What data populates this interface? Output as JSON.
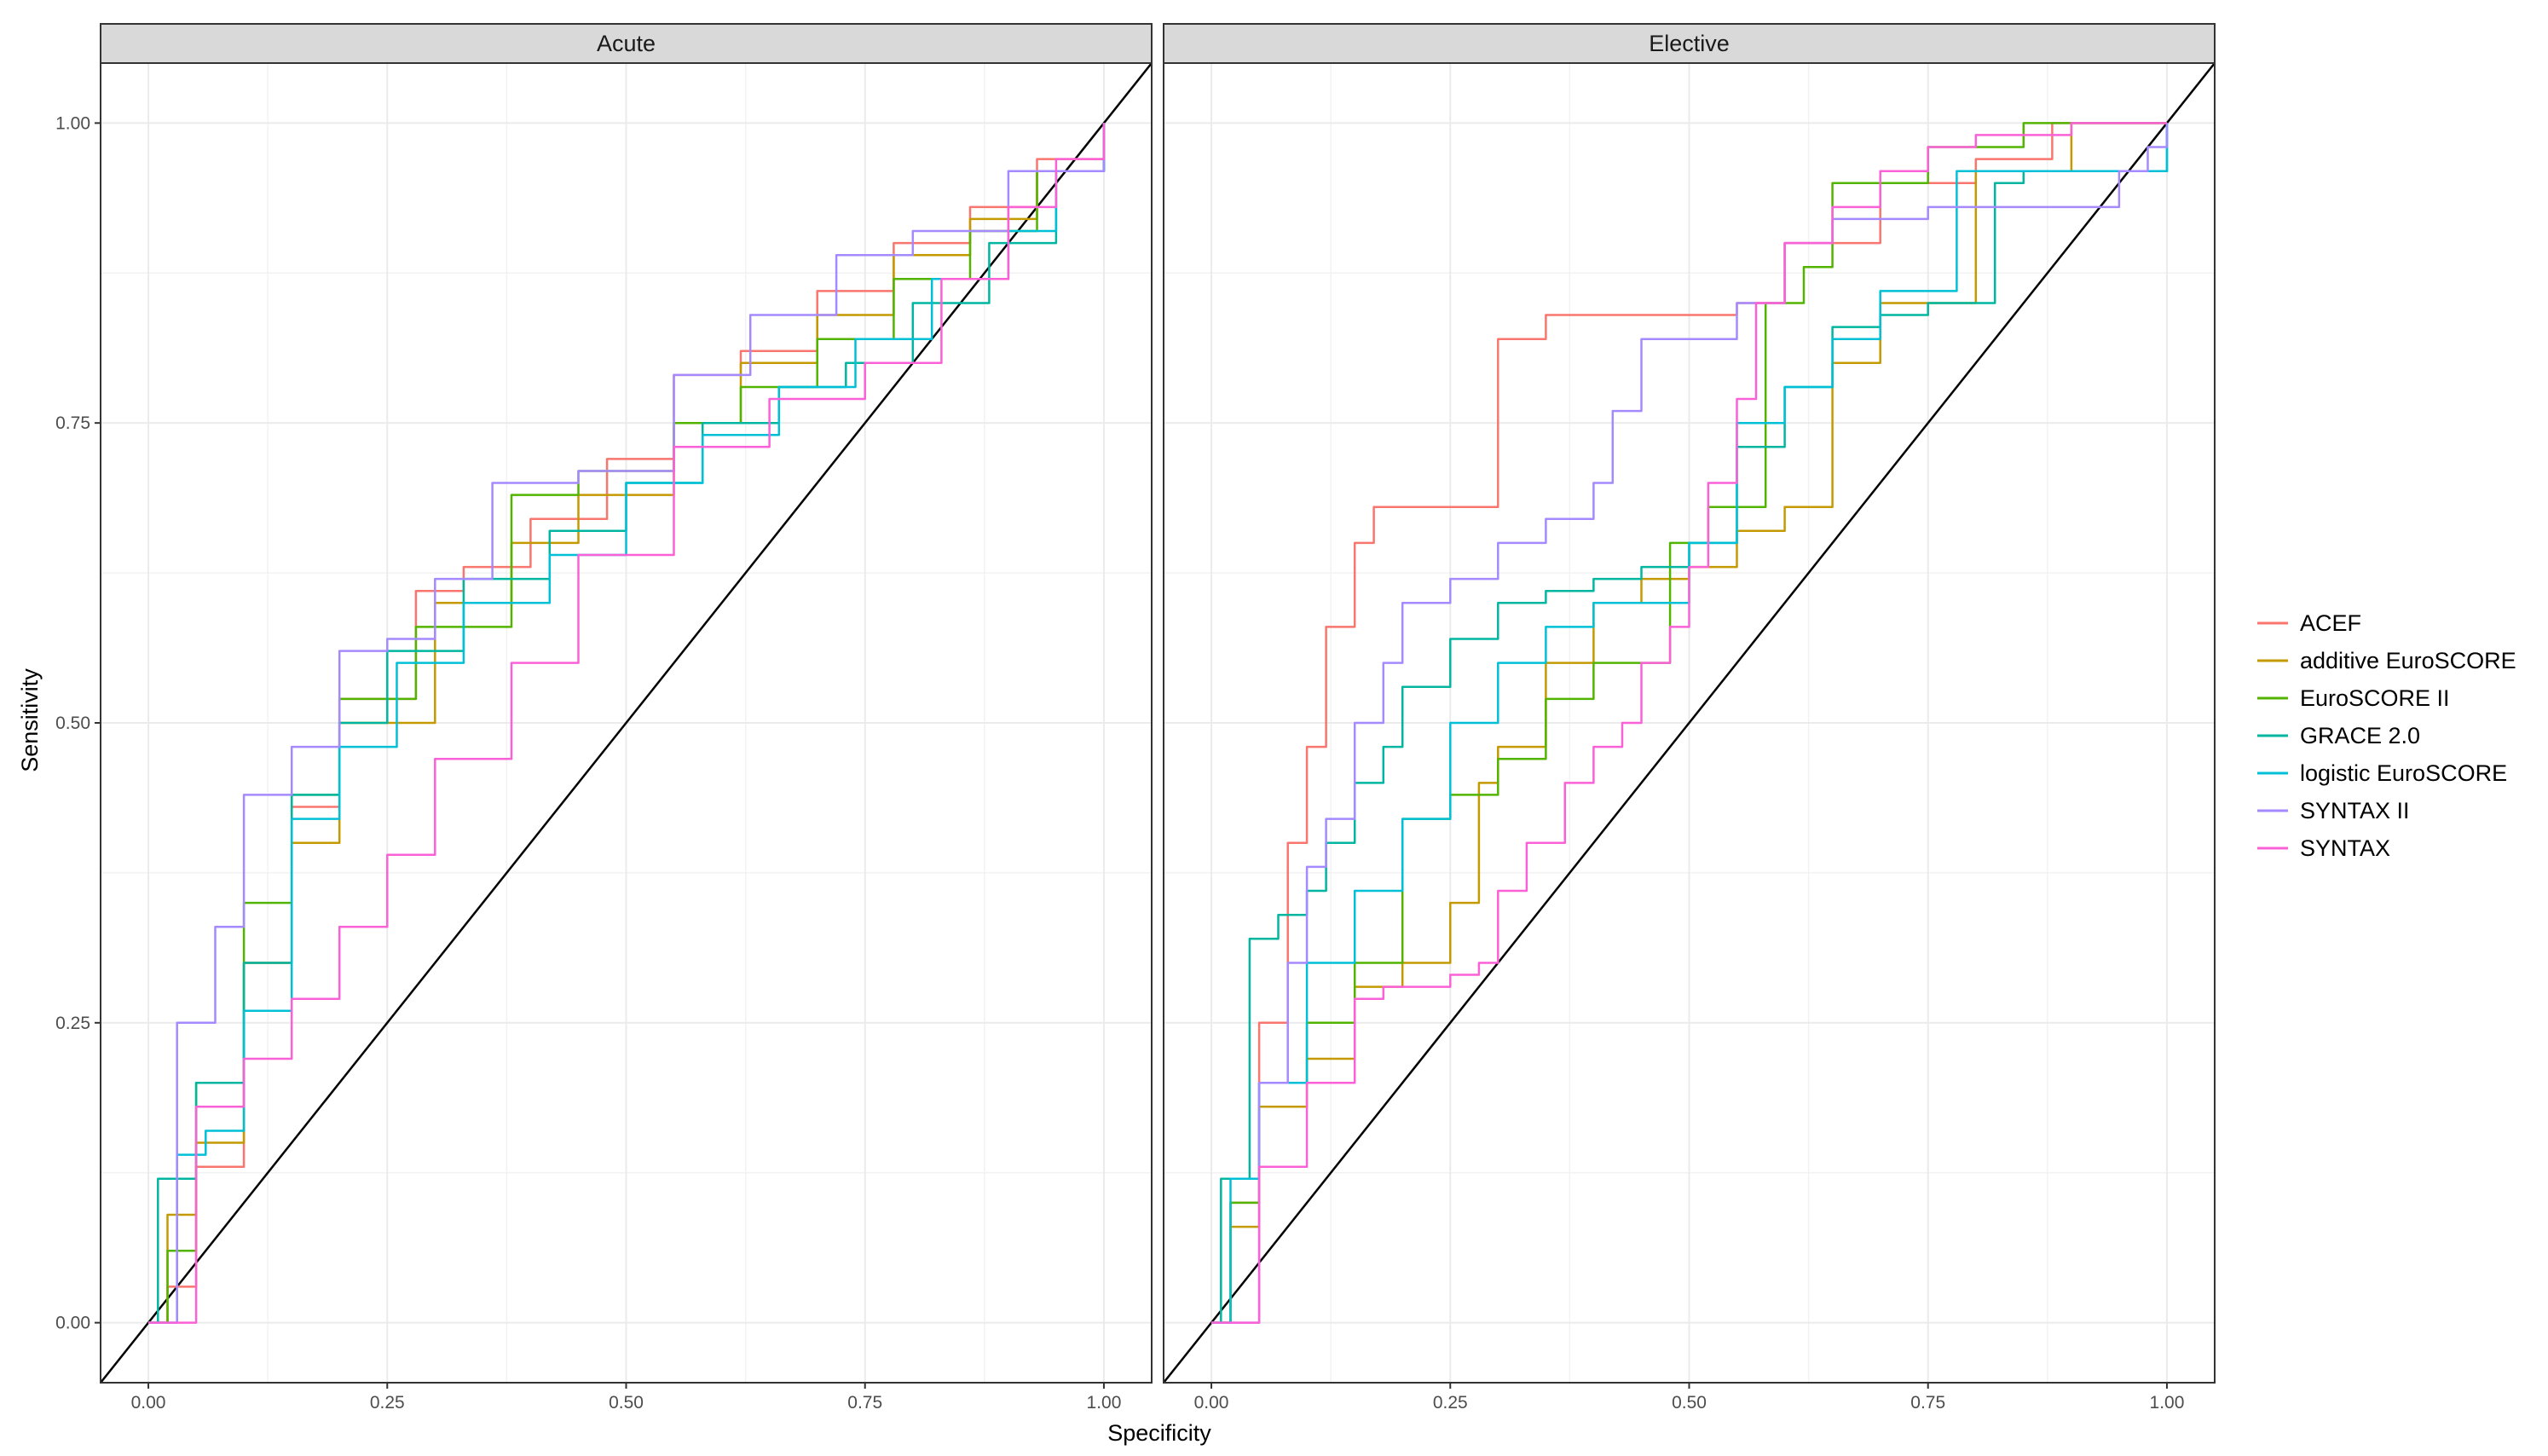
{
  "chart_data": {
    "type": "line",
    "xlabel": "Specificity",
    "ylabel": "Sensitivity",
    "xlim": [
      0,
      1
    ],
    "ylim": [
      0,
      1
    ],
    "x_ticks": [
      "0.00",
      "0.25",
      "0.50",
      "0.75",
      "1.00"
    ],
    "y_ticks": [
      "0.00",
      "0.25",
      "0.50",
      "0.75",
      "1.00"
    ],
    "grid": true,
    "legend_position": "right",
    "reference_line": "diagonal",
    "legend": [
      {
        "name": "ACEF",
        "color": "#F8766D"
      },
      {
        "name": "additive EuroSCORE",
        "color": "#C49A00"
      },
      {
        "name": "EuroSCORE II",
        "color": "#53B400"
      },
      {
        "name": "GRACE 2.0",
        "color": "#00B6A0"
      },
      {
        "name": "logistic EuroSCORE",
        "color": "#00C0D8"
      },
      {
        "name": "SYNTAX II",
        "color": "#A58AFF"
      },
      {
        "name": "SYNTAX",
        "color": "#FB61D7"
      }
    ],
    "panels": [
      {
        "title": "Acute",
        "series": [
          {
            "name": "ACEF",
            "x": [
              0,
              0.02,
              0.05,
              0.1,
              0.15,
              0.2,
              0.28,
              0.33,
              0.4,
              0.48,
              0.55,
              0.62,
              0.7,
              0.78,
              0.86,
              0.93,
              1.0
            ],
            "y": [
              0,
              0.03,
              0.13,
              0.3,
              0.43,
              0.52,
              0.61,
              0.63,
              0.67,
              0.72,
              0.79,
              0.81,
              0.86,
              0.9,
              0.93,
              0.97,
              1.0
            ]
          },
          {
            "name": "additive EuroSCORE",
            "x": [
              0,
              0.02,
              0.05,
              0.1,
              0.15,
              0.2,
              0.3,
              0.38,
              0.45,
              0.55,
              0.62,
              0.7,
              0.78,
              0.86,
              0.93,
              1.0
            ],
            "y": [
              0,
              0.09,
              0.15,
              0.3,
              0.4,
              0.5,
              0.6,
              0.65,
              0.69,
              0.75,
              0.8,
              0.84,
              0.89,
              0.92,
              0.96,
              1.0
            ]
          },
          {
            "name": "EuroSCORE II",
            "x": [
              0,
              0.02,
              0.05,
              0.1,
              0.15,
              0.2,
              0.28,
              0.38,
              0.45,
              0.55,
              0.62,
              0.7,
              0.78,
              0.86,
              0.93,
              1.0
            ],
            "y": [
              0,
              0.06,
              0.2,
              0.35,
              0.44,
              0.52,
              0.58,
              0.69,
              0.71,
              0.75,
              0.78,
              0.82,
              0.87,
              0.91,
              0.96,
              1.0
            ]
          },
          {
            "name": "GRACE 2.0",
            "x": [
              0,
              0.01,
              0.05,
              0.1,
              0.15,
              0.2,
              0.25,
              0.33,
              0.42,
              0.5,
              0.58,
              0.66,
              0.73,
              0.8,
              0.88,
              0.95,
              1.0
            ],
            "y": [
              0,
              0.12,
              0.2,
              0.3,
              0.44,
              0.5,
              0.56,
              0.62,
              0.66,
              0.7,
              0.75,
              0.78,
              0.8,
              0.85,
              0.9,
              0.96,
              1.0
            ]
          },
          {
            "name": "logistic EuroSCORE",
            "x": [
              0,
              0.03,
              0.06,
              0.1,
              0.15,
              0.2,
              0.26,
              0.33,
              0.42,
              0.5,
              0.58,
              0.66,
              0.74,
              0.82,
              0.9,
              0.95,
              1.0
            ],
            "y": [
              0,
              0.14,
              0.16,
              0.26,
              0.42,
              0.48,
              0.55,
              0.6,
              0.64,
              0.7,
              0.74,
              0.78,
              0.82,
              0.87,
              0.91,
              0.96,
              1.0
            ]
          },
          {
            "name": "SYNTAX II",
            "x": [
              0,
              0.03,
              0.07,
              0.1,
              0.15,
              0.2,
              0.25,
              0.3,
              0.36,
              0.45,
              0.55,
              0.63,
              0.72,
              0.8,
              0.9,
              1.0
            ],
            "y": [
              0,
              0.25,
              0.33,
              0.44,
              0.48,
              0.56,
              0.57,
              0.62,
              0.7,
              0.71,
              0.79,
              0.84,
              0.89,
              0.91,
              0.96,
              1.0
            ]
          },
          {
            "name": "SYNTAX",
            "x": [
              0,
              0.05,
              0.1,
              0.15,
              0.2,
              0.25,
              0.3,
              0.38,
              0.45,
              0.55,
              0.65,
              0.75,
              0.83,
              0.9,
              0.95,
              1.0
            ],
            "y": [
              0,
              0.18,
              0.22,
              0.27,
              0.33,
              0.39,
              0.47,
              0.55,
              0.64,
              0.73,
              0.77,
              0.8,
              0.87,
              0.93,
              0.97,
              1.0
            ]
          }
        ]
      },
      {
        "title": "Elective",
        "series": [
          {
            "name": "ACEF",
            "x": [
              0,
              0.02,
              0.05,
              0.08,
              0.1,
              0.12,
              0.15,
              0.17,
              0.25,
              0.3,
              0.35,
              0.55,
              0.6,
              0.7,
              0.8,
              0.88,
              1.0
            ],
            "y": [
              0,
              0.1,
              0.25,
              0.4,
              0.48,
              0.58,
              0.65,
              0.68,
              0.68,
              0.82,
              0.84,
              0.85,
              0.9,
              0.95,
              0.97,
              1.0,
              1.0
            ]
          },
          {
            "name": "additive EuroSCORE",
            "x": [
              0,
              0.02,
              0.05,
              0.1,
              0.15,
              0.2,
              0.25,
              0.28,
              0.3,
              0.35,
              0.4,
              0.45,
              0.5,
              0.55,
              0.6,
              0.65,
              0.7,
              0.75,
              0.8,
              0.9,
              1.0
            ],
            "y": [
              0,
              0.08,
              0.18,
              0.22,
              0.28,
              0.3,
              0.35,
              0.45,
              0.48,
              0.55,
              0.6,
              0.62,
              0.63,
              0.66,
              0.68,
              0.8,
              0.85,
              0.85,
              0.96,
              1.0,
              1.0
            ]
          },
          {
            "name": "EuroSCORE II",
            "x": [
              0,
              0.02,
              0.05,
              0.1,
              0.15,
              0.2,
              0.25,
              0.3,
              0.35,
              0.4,
              0.48,
              0.52,
              0.58,
              0.62,
              0.65,
              0.75,
              0.85,
              1.0
            ],
            "y": [
              0,
              0.1,
              0.2,
              0.25,
              0.3,
              0.42,
              0.44,
              0.47,
              0.52,
              0.55,
              0.65,
              0.68,
              0.85,
              0.88,
              0.95,
              0.98,
              1.0,
              1.0
            ]
          },
          {
            "name": "GRACE 2.0",
            "x": [
              0,
              0.01,
              0.04,
              0.07,
              0.1,
              0.12,
              0.15,
              0.18,
              0.2,
              0.25,
              0.3,
              0.35,
              0.4,
              0.45,
              0.5,
              0.55,
              0.6,
              0.65,
              0.7,
              0.75,
              0.8,
              0.82,
              0.85,
              0.95,
              1.0
            ],
            "y": [
              0,
              0.12,
              0.32,
              0.34,
              0.36,
              0.4,
              0.45,
              0.48,
              0.53,
              0.57,
              0.6,
              0.61,
              0.62,
              0.63,
              0.65,
              0.73,
              0.78,
              0.83,
              0.84,
              0.85,
              0.85,
              0.95,
              0.96,
              0.96,
              1.0
            ]
          },
          {
            "name": "logistic EuroSCORE",
            "x": [
              0,
              0.02,
              0.05,
              0.1,
              0.15,
              0.2,
              0.25,
              0.3,
              0.35,
              0.4,
              0.45,
              0.5,
              0.55,
              0.6,
              0.65,
              0.7,
              0.78,
              0.83,
              0.95,
              1.0
            ],
            "y": [
              0,
              0.12,
              0.2,
              0.3,
              0.36,
              0.42,
              0.5,
              0.55,
              0.58,
              0.6,
              0.6,
              0.65,
              0.75,
              0.78,
              0.82,
              0.86,
              0.96,
              0.96,
              0.96,
              1.0
            ]
          },
          {
            "name": "SYNTAX II",
            "x": [
              0,
              0.05,
              0.08,
              0.1,
              0.12,
              0.15,
              0.18,
              0.2,
              0.25,
              0.3,
              0.35,
              0.4,
              0.42,
              0.45,
              0.55,
              0.6,
              0.65,
              0.75,
              0.85,
              0.95,
              0.98,
              1.0
            ],
            "y": [
              0,
              0.2,
              0.3,
              0.38,
              0.42,
              0.5,
              0.55,
              0.6,
              0.62,
              0.65,
              0.67,
              0.7,
              0.76,
              0.82,
              0.85,
              0.9,
              0.92,
              0.93,
              0.93,
              0.96,
              0.98,
              1.0
            ]
          },
          {
            "name": "SYNTAX",
            "x": [
              0,
              0.05,
              0.1,
              0.15,
              0.18,
              0.25,
              0.28,
              0.3,
              0.33,
              0.37,
              0.4,
              0.43,
              0.45,
              0.48,
              0.5,
              0.52,
              0.55,
              0.57,
              0.6,
              0.65,
              0.7,
              0.75,
              0.8,
              0.9,
              1.0
            ],
            "y": [
              0,
              0.13,
              0.2,
              0.27,
              0.28,
              0.29,
              0.3,
              0.36,
              0.4,
              0.45,
              0.48,
              0.5,
              0.55,
              0.58,
              0.63,
              0.7,
              0.77,
              0.85,
              0.9,
              0.93,
              0.96,
              0.98,
              0.99,
              1.0,
              1.0
            ]
          }
        ]
      }
    ]
  }
}
